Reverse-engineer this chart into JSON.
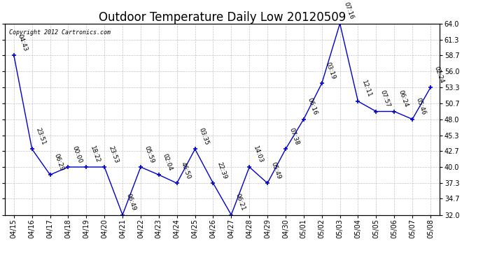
{
  "title": "Outdoor Temperature Daily Low 20120509",
  "copyright": "Copyright 2012 Cartronics.com",
  "x_labels": [
    "04/15",
    "04/16",
    "04/17",
    "04/18",
    "04/19",
    "04/20",
    "04/21",
    "04/22",
    "04/23",
    "04/24",
    "04/25",
    "04/26",
    "04/27",
    "04/28",
    "04/29",
    "04/30",
    "05/01",
    "05/02",
    "05/03",
    "05/04",
    "05/05",
    "05/06",
    "05/07",
    "05/08"
  ],
  "y_values": [
    58.7,
    43.0,
    38.7,
    40.0,
    40.0,
    40.0,
    32.0,
    40.0,
    38.7,
    37.3,
    43.0,
    37.3,
    32.0,
    40.0,
    37.3,
    43.0,
    48.0,
    54.0,
    64.0,
    51.0,
    49.3,
    49.3,
    48.0,
    53.3
  ],
  "annotations": [
    "04:43",
    "23:51",
    "06:29",
    "00:00",
    "18:22",
    "23:53",
    "06:49",
    "05:59",
    "02:04",
    "46:50",
    "03:35",
    "22:39",
    "06:21",
    "14:03",
    "05:49",
    "07:38",
    "06:16",
    "03:19",
    "07:16",
    "12:11",
    "07:57",
    "06:24",
    "05:46",
    "02:24"
  ],
  "ylim": [
    32.0,
    64.0
  ],
  "yticks": [
    32.0,
    34.7,
    37.3,
    40.0,
    42.7,
    45.3,
    48.0,
    50.7,
    53.3,
    56.0,
    58.7,
    61.3,
    64.0
  ],
  "line_color": "#0000cc",
  "marker_color": "#0000cc",
  "bg_color": "#ffffff",
  "grid_color": "#aaaaaa",
  "title_fontsize": 12,
  "label_fontsize": 7,
  "annotation_fontsize": 6.5,
  "dpi": 100
}
